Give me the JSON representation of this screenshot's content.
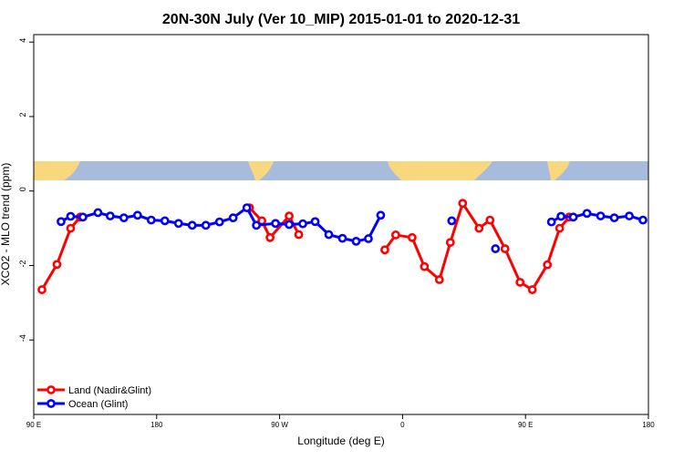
{
  "chart_data": {
    "type": "line",
    "title": "20N-30N July (Ver 10_MIP)   2015-01-01 to 2020-12-31",
    "x_label": "Longitude (deg E)",
    "y_label": "XCO2 - MLO trend (ppm)",
    "xlim": [
      90,
      540
    ],
    "ylim": [
      -6,
      4.2
    ],
    "xticks": [
      {
        "value": 90,
        "label": "90 E"
      },
      180,
      {
        "value": 270,
        "label": "90 W"
      },
      {
        "value": 360,
        "label": "0"
      },
      {
        "value": 450,
        "label": "90 E"
      },
      {
        "value": 540,
        "label": "180"
      }
    ],
    "yticks": [
      4,
      2,
      0,
      -2,
      -4
    ],
    "legend": "bottomleft",
    "grid": false,
    "series": [
      {
        "name": "Land (Nadir&Glint)",
        "color": "#ff0000",
        "x": [
          96,
          107,
          117,
          124,
          null,
          248,
          257,
          263,
          277,
          284,
          null,
          347,
          355,
          367,
          376,
          387,
          395,
          404,
          416,
          424,
          435,
          446,
          455,
          466,
          475,
          482
        ],
        "values": [
          -2.65,
          -1.97,
          -1.0,
          -0.7,
          null,
          -0.45,
          -0.8,
          -1.25,
          -0.67,
          -1.17,
          null,
          -1.58,
          -1.18,
          -1.25,
          -2.03,
          -2.38,
          -1.38,
          -0.33,
          -1.0,
          -0.78,
          -1.55,
          -2.45,
          -2.65,
          -1.98,
          -1.0,
          -0.7
        ]
      },
      {
        "name": "Ocean (Glint)",
        "color": "#0000ff",
        "x": [
          110,
          117,
          126,
          137,
          146,
          156,
          166,
          176,
          186,
          196,
          206,
          216,
          226,
          236,
          246,
          253,
          267,
          277,
          287,
          296,
          306,
          316,
          326,
          335,
          344,
          null,
          396,
          null,
          428,
          null,
          469,
          476,
          485,
          495,
          505,
          515,
          526,
          536
        ],
        "values": [
          -0.82,
          -0.68,
          -0.7,
          -0.58,
          -0.67,
          -0.72,
          -0.65,
          -0.78,
          -0.8,
          -0.87,
          -0.92,
          -0.92,
          -0.83,
          -0.72,
          -0.45,
          -0.92,
          -0.87,
          -0.9,
          -0.88,
          -0.82,
          -1.17,
          -1.27,
          -1.35,
          -1.28,
          -0.65,
          null,
          -0.8,
          null,
          -1.55,
          null,
          -0.83,
          -0.68,
          -0.7,
          -0.6,
          -0.67,
          -0.72,
          -0.67,
          -0.78
        ]
      }
    ]
  }
}
